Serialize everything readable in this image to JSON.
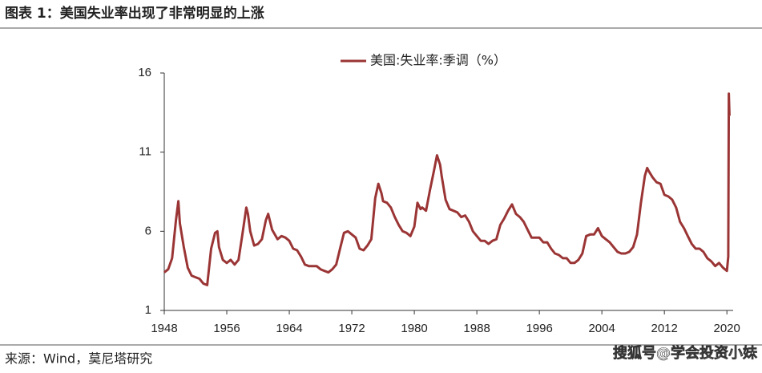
{
  "chart_data": {
    "type": "line",
    "title": "图表 1：美国失业率出现了非常明显的上涨",
    "source": "来源：Wind，莫尼塔研究",
    "watermark": "搜狐号@学会投资小妹",
    "xlim": [
      1948,
      2020.8
    ],
    "xticks": [
      1948,
      1956,
      1964,
      1972,
      1980,
      1988,
      1996,
      2004,
      2012,
      2020
    ],
    "ylim": [
      1,
      16
    ],
    "yticks": [
      1,
      6,
      11,
      16
    ],
    "legend": "top",
    "x": [
      1948.0,
      1948.5,
      1949.0,
      1949.5,
      1949.8,
      1950.0,
      1950.5,
      1951.0,
      1951.5,
      1952.0,
      1952.5,
      1953.0,
      1953.5,
      1954.0,
      1954.5,
      1954.8,
      1955.0,
      1955.5,
      1956.0,
      1956.5,
      1957.0,
      1957.5,
      1958.0,
      1958.5,
      1958.7,
      1959.0,
      1959.5,
      1960.0,
      1960.5,
      1961.0,
      1961.3,
      1961.8,
      1962.5,
      1963.0,
      1963.5,
      1964.0,
      1964.5,
      1965.0,
      1965.5,
      1966.0,
      1966.5,
      1967.0,
      1967.5,
      1968.0,
      1968.5,
      1969.0,
      1969.5,
      1970.0,
      1970.5,
      1971.0,
      1971.5,
      1972.0,
      1972.5,
      1973.0,
      1973.5,
      1974.0,
      1974.5,
      1975.0,
      1975.4,
      1975.8,
      1976.0,
      1976.5,
      1977.0,
      1977.5,
      1978.0,
      1978.5,
      1979.0,
      1979.5,
      1980.0,
      1980.4,
      1980.8,
      1981.0,
      1981.5,
      1982.0,
      1982.5,
      1982.9,
      1983.3,
      1983.5,
      1984.0,
      1984.5,
      1985.0,
      1985.5,
      1986.0,
      1986.5,
      1987.0,
      1987.5,
      1988.0,
      1988.5,
      1989.0,
      1989.5,
      1990.0,
      1990.5,
      1991.0,
      1991.5,
      1992.0,
      1992.5,
      1993.0,
      1993.5,
      1994.0,
      1994.5,
      1995.0,
      1995.5,
      1996.0,
      1996.5,
      1997.0,
      1997.5,
      1998.0,
      1998.5,
      1999.0,
      1999.5,
      2000.0,
      2000.5,
      2001.0,
      2001.5,
      2002.0,
      2002.5,
      2003.0,
      2003.5,
      2004.0,
      2004.5,
      2005.0,
      2005.5,
      2006.0,
      2006.5,
      2007.0,
      2007.5,
      2008.0,
      2008.5,
      2009.0,
      2009.5,
      2009.8,
      2010.0,
      2010.5,
      2011.0,
      2011.5,
      2012.0,
      2012.5,
      2013.0,
      2013.5,
      2014.0,
      2014.5,
      2015.0,
      2015.5,
      2016.0,
      2016.5,
      2017.0,
      2017.5,
      2018.0,
      2018.5,
      2019.0,
      2019.5,
      2020.0,
      2020.17,
      2020.25,
      2020.33
    ],
    "series": [
      {
        "name": "美国:失业率:季调（%）",
        "color": "#9b3535",
        "values": [
          3.4,
          3.6,
          4.3,
          6.7,
          7.9,
          6.5,
          5.0,
          3.7,
          3.2,
          3.1,
          3.0,
          2.7,
          2.6,
          4.9,
          5.9,
          6.0,
          5.0,
          4.2,
          4.0,
          4.2,
          3.9,
          4.2,
          5.8,
          7.5,
          7.1,
          6.0,
          5.1,
          5.2,
          5.5,
          6.7,
          7.1,
          6.1,
          5.5,
          5.7,
          5.6,
          5.4,
          4.9,
          4.8,
          4.4,
          3.9,
          3.8,
          3.8,
          3.8,
          3.6,
          3.5,
          3.4,
          3.6,
          3.9,
          4.9,
          5.9,
          6.0,
          5.8,
          5.6,
          4.9,
          4.8,
          5.1,
          5.5,
          8.1,
          9.0,
          8.4,
          7.9,
          7.8,
          7.5,
          6.9,
          6.4,
          6.0,
          5.9,
          5.7,
          6.3,
          7.8,
          7.4,
          7.5,
          7.3,
          8.6,
          9.8,
          10.8,
          10.2,
          9.5,
          8.0,
          7.4,
          7.3,
          7.2,
          6.9,
          7.0,
          6.6,
          6.0,
          5.7,
          5.4,
          5.4,
          5.2,
          5.4,
          5.5,
          6.4,
          6.8,
          7.3,
          7.7,
          7.1,
          6.9,
          6.6,
          6.1,
          5.6,
          5.6,
          5.6,
          5.3,
          5.3,
          4.9,
          4.6,
          4.5,
          4.3,
          4.3,
          4.0,
          4.0,
          4.2,
          4.6,
          5.7,
          5.8,
          5.8,
          6.2,
          5.7,
          5.5,
          5.3,
          5.0,
          4.7,
          4.6,
          4.6,
          4.7,
          5.0,
          5.8,
          7.8,
          9.5,
          10.0,
          9.8,
          9.4,
          9.1,
          9.0,
          8.3,
          8.2,
          8.0,
          7.5,
          6.6,
          6.2,
          5.7,
          5.2,
          4.9,
          4.9,
          4.7,
          4.3,
          4.1,
          3.8,
          4.0,
          3.7,
          3.5,
          4.4,
          14.7,
          13.3
        ]
      }
    ]
  }
}
